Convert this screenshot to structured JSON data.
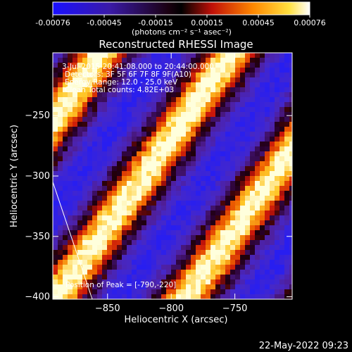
{
  "chart_data": {
    "type": "heatmap",
    "title": "Reconstructed RHESSI Image",
    "xlabel": "Heliocentric X (arcsec)",
    "ylabel": "Heliocentric Y (arcsec)",
    "xlim": [
      -893,
      -705
    ],
    "ylim": [
      -402,
      -198
    ],
    "x_ticks": [
      -850,
      -800,
      -750
    ],
    "y_ticks": [
      -250,
      -300,
      -350,
      -400
    ],
    "colorbar": {
      "ticks": [
        "-0.00076",
        "-0.00045",
        "-0.00015",
        "0.00015",
        "0.00045",
        "0.00076"
      ],
      "range": [
        -0.00076,
        0.00076
      ],
      "label": "(photons cm⁻² s⁻¹ asec⁻²)"
    },
    "annotations": [
      "3-Jul-2015 20:41:08.000 to 20:44:00.000",
      "Detectors: 3F 5F 6F 7F 8F 9F(A10)",
      "Energy Range: 12.0 - 25.0 keV",
      "Clean    Total counts: 4.82E+03"
    ],
    "peak_label": "Position of Peak = [-790,-220]",
    "limb_line": {
      "x": [
        -893,
        -862
      ],
      "y": [
        -305,
        -402
      ]
    }
  },
  "footer": {
    "timestamp": "22-May-2022 09:23"
  }
}
